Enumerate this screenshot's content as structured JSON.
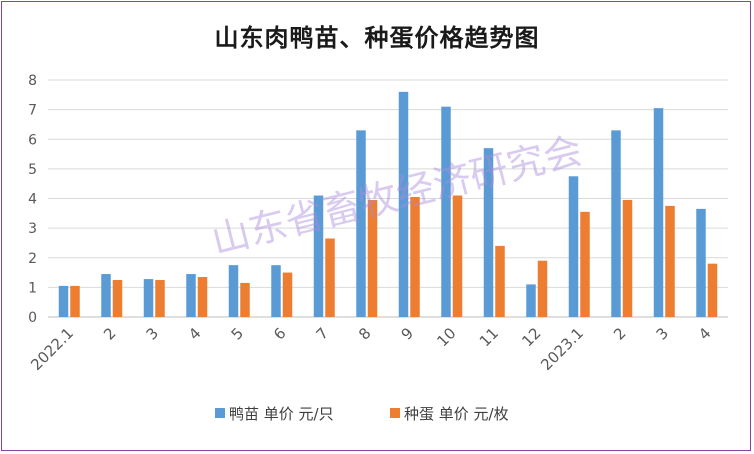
{
  "chart_data": {
    "type": "bar",
    "title": "山东肉鸭苗、种蛋价格趋势图",
    "categories": [
      "2022.1",
      "2",
      "3",
      "4",
      "5",
      "6",
      "7",
      "8",
      "9",
      "10",
      "11",
      "12",
      "2023.1",
      "2",
      "3",
      "4"
    ],
    "series": [
      {
        "name": "鸭苗 单价 元/只",
        "color": "#5b9bd5",
        "values": [
          1.05,
          1.45,
          1.28,
          1.45,
          1.75,
          1.75,
          4.1,
          6.3,
          7.6,
          7.1,
          5.7,
          1.1,
          4.75,
          6.3,
          7.05,
          3.65
        ]
      },
      {
        "name": "种蛋 单价 元/枚",
        "color": "#ed7d31",
        "values": [
          1.05,
          1.25,
          1.25,
          1.35,
          1.15,
          1.5,
          2.65,
          3.95,
          4.05,
          4.1,
          2.4,
          1.9,
          3.55,
          3.95,
          3.75,
          1.8
        ]
      }
    ],
    "ylim": [
      0,
      8
    ],
    "yticks": [
      "0",
      "1",
      "2",
      "3",
      "4",
      "5",
      "6",
      "7",
      "8"
    ],
    "grid": true,
    "legend": "bottom",
    "watermark": "山东省畜牧经济研究会"
  }
}
